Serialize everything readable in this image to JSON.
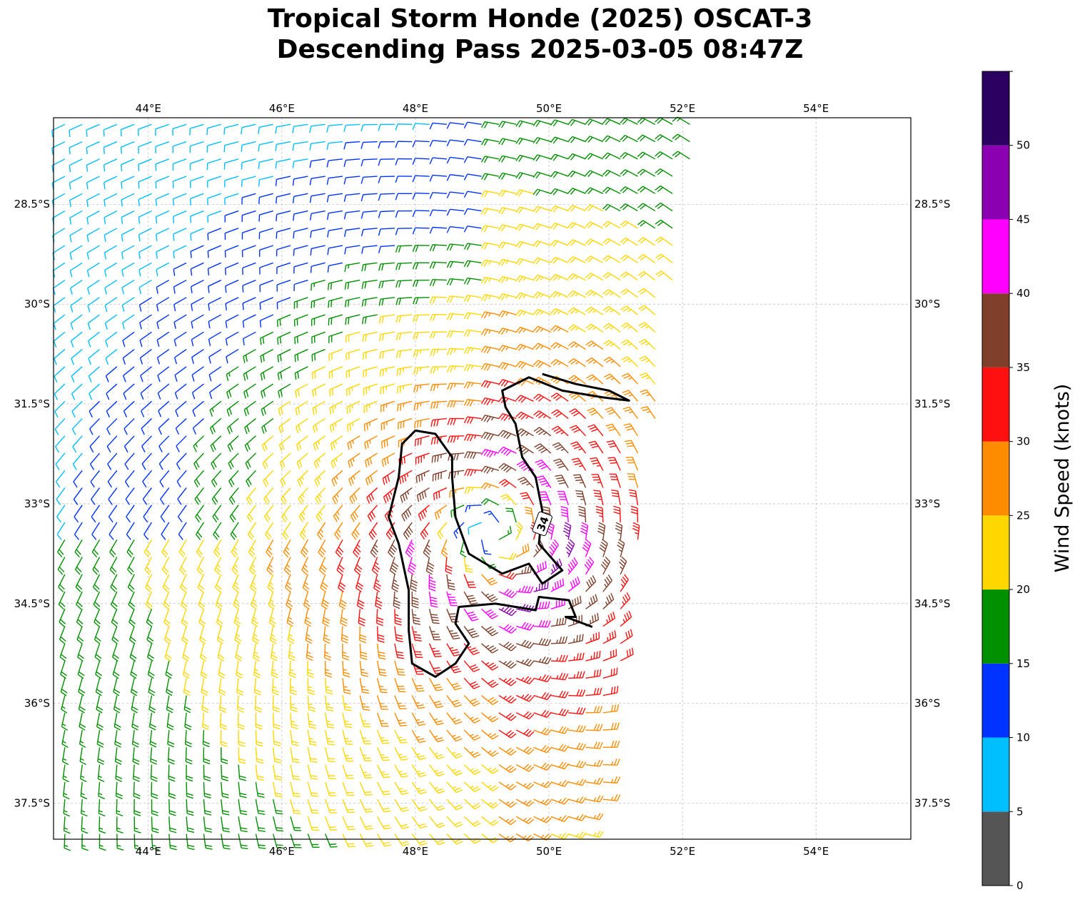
{
  "title_line1": "Tropical Storm Honde (2025) OSCAT-3",
  "title_line2": "Descending Pass 2025-03-05 08:47Z",
  "chart_data": {
    "type": "wind-barb-map",
    "lon_range": [
      42.58,
      55.42
    ],
    "lat_range": [
      -38.04,
      -27.2
    ],
    "lon_ticks": [
      44,
      46,
      48,
      50,
      52,
      54
    ],
    "lon_tick_labels": [
      "44°E",
      "46°E",
      "48°E",
      "50°E",
      "52°E",
      "54°E"
    ],
    "lat_ticks": [
      -28.5,
      -30,
      -31.5,
      -33,
      -34.5,
      -36,
      -37.5
    ],
    "lat_tick_labels": [
      "28.5°S",
      "30°S",
      "31.5°S",
      "33°S",
      "34.5°S",
      "36°S",
      "37.5°S"
    ],
    "grid": true,
    "storm_center": {
      "lon": 49.1,
      "lat": -33.4
    },
    "max_wind_kt": 42,
    "contour_label": "34",
    "contour_34kt": [
      [
        49.9,
        -31.05
      ],
      [
        50.4,
        -31.2
      ],
      [
        50.9,
        -31.3
      ],
      [
        51.2,
        -31.45
      ],
      [
        50.8,
        -31.4
      ],
      [
        50.2,
        -31.3
      ],
      [
        49.7,
        -31.1
      ],
      [
        49.3,
        -31.3
      ],
      [
        49.35,
        -31.55
      ],
      [
        49.5,
        -31.8
      ],
      [
        49.6,
        -32.3
      ],
      [
        49.8,
        -32.6
      ],
      [
        49.9,
        -33.1
      ],
      [
        49.85,
        -33.6
      ],
      [
        50.2,
        -34.0
      ],
      [
        49.9,
        -34.2
      ],
      [
        49.7,
        -33.9
      ],
      [
        49.3,
        -34.05
      ],
      [
        48.8,
        -33.75
      ],
      [
        48.6,
        -33.2
      ],
      [
        48.55,
        -32.6
      ],
      [
        48.55,
        -32.3
      ],
      [
        48.3,
        -31.95
      ],
      [
        48.0,
        -31.9
      ],
      [
        47.8,
        -32.1
      ],
      [
        47.75,
        -32.6
      ],
      [
        47.6,
        -33.2
      ],
      [
        47.75,
        -33.6
      ],
      [
        47.9,
        -34.3
      ],
      [
        47.9,
        -34.9
      ],
      [
        47.95,
        -35.4
      ],
      [
        48.3,
        -35.6
      ],
      [
        48.6,
        -35.4
      ],
      [
        48.8,
        -35.1
      ],
      [
        48.6,
        -34.8
      ],
      [
        48.65,
        -34.55
      ],
      [
        49.2,
        -34.5
      ],
      [
        49.8,
        -34.6
      ],
      [
        49.85,
        -34.4
      ],
      [
        50.3,
        -34.45
      ],
      [
        50.4,
        -34.7
      ],
      [
        50.25,
        -34.7
      ],
      [
        50.65,
        -34.85
      ]
    ],
    "colorbar": {
      "label": "Wind Speed (knots)",
      "bounds": [
        0,
        5,
        10,
        15,
        20,
        25,
        30,
        35,
        40,
        45,
        50,
        55
      ],
      "tick_values": [
        0,
        5,
        10,
        15,
        20,
        25,
        30,
        35,
        40,
        45,
        50
      ],
      "tick_labels": [
        "0",
        "5",
        "10",
        "15",
        "20",
        "25",
        "30",
        "35",
        "40",
        "45",
        "50"
      ],
      "colors": [
        "#555555",
        "#00bfff",
        "#0033ff",
        "#009000",
        "#ffd700",
        "#ff8c00",
        "#ff1010",
        "#7f3f2a",
        "#ff00ff",
        "#8b00b0",
        "#2b0060"
      ]
    }
  }
}
